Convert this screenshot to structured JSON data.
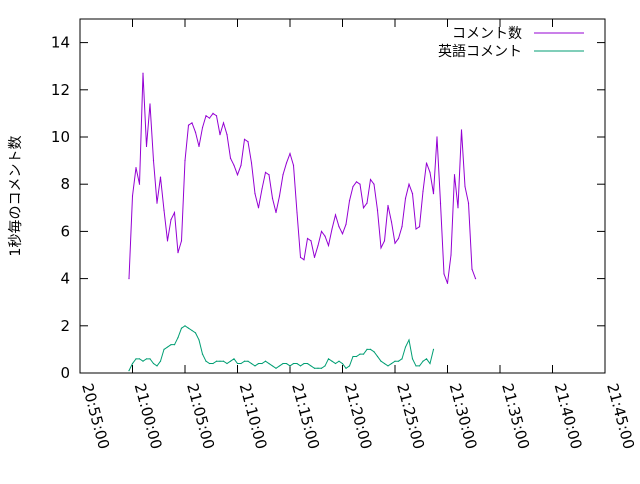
{
  "chart_data": {
    "type": "line",
    "ylabel": "1秒毎のコメント数",
    "xlabel": "",
    "ylim": [
      0,
      15
    ],
    "xlim": [
      "20:55:00",
      "21:45:00"
    ],
    "x_ticks": [
      "20:55:00",
      "21:00:00",
      "21:05:00",
      "21:10:00",
      "21:15:00",
      "21:20:00",
      "21:25:00",
      "21:30:00",
      "21:35:00",
      "21:40:00",
      "21:45:00"
    ],
    "y_ticks": [
      "0",
      "2",
      "4",
      "6",
      "8",
      "10",
      "12",
      "14"
    ],
    "grid": false,
    "legend_position": "top-right",
    "series": [
      {
        "name": "コメント数",
        "color": "#9400d3",
        "points": [
          [
            "20:59:40",
            4.0
          ],
          [
            "21:00:00",
            7.5
          ],
          [
            "21:00:20",
            8.7
          ],
          [
            "21:00:40",
            8.0
          ],
          [
            "21:01:00",
            12.7
          ],
          [
            "21:01:20",
            9.6
          ],
          [
            "21:01:40",
            11.4
          ],
          [
            "21:02:00",
            9.0
          ],
          [
            "21:02:20",
            7.2
          ],
          [
            "21:02:40",
            8.3
          ],
          [
            "21:03:00",
            6.9
          ],
          [
            "21:03:20",
            5.6
          ],
          [
            "21:03:40",
            6.5
          ],
          [
            "21:04:00",
            6.8
          ],
          [
            "21:04:20",
            5.1
          ],
          [
            "21:04:40",
            5.6
          ],
          [
            "21:05:00",
            9.0
          ],
          [
            "21:05:20",
            10.5
          ],
          [
            "21:05:40",
            10.6
          ],
          [
            "21:06:00",
            10.2
          ],
          [
            "21:06:20",
            9.6
          ],
          [
            "21:06:40",
            10.4
          ],
          [
            "21:07:00",
            10.9
          ],
          [
            "21:07:20",
            10.8
          ],
          [
            "21:07:40",
            11.0
          ],
          [
            "21:08:00",
            10.9
          ],
          [
            "21:08:20",
            10.1
          ],
          [
            "21:08:40",
            10.6
          ],
          [
            "21:09:00",
            10.1
          ],
          [
            "21:09:20",
            9.1
          ],
          [
            "21:09:40",
            8.8
          ],
          [
            "21:10:00",
            8.4
          ],
          [
            "21:10:20",
            8.8
          ],
          [
            "21:10:40",
            9.9
          ],
          [
            "21:11:00",
            9.8
          ],
          [
            "21:11:20",
            8.9
          ],
          [
            "21:11:40",
            7.6
          ],
          [
            "21:12:00",
            7.0
          ],
          [
            "21:12:20",
            7.8
          ],
          [
            "21:12:40",
            8.5
          ],
          [
            "21:13:00",
            8.4
          ],
          [
            "21:13:20",
            7.4
          ],
          [
            "21:13:40",
            6.8
          ],
          [
            "21:14:00",
            7.5
          ],
          [
            "21:14:20",
            8.4
          ],
          [
            "21:14:40",
            8.9
          ],
          [
            "21:15:00",
            9.3
          ],
          [
            "21:15:20",
            8.8
          ],
          [
            "21:15:40",
            6.8
          ],
          [
            "21:16:00",
            4.9
          ],
          [
            "21:16:20",
            4.8
          ],
          [
            "21:16:40",
            5.7
          ],
          [
            "21:17:00",
            5.6
          ],
          [
            "21:17:20",
            4.9
          ],
          [
            "21:17:40",
            5.4
          ],
          [
            "21:18:00",
            6.0
          ],
          [
            "21:18:20",
            5.8
          ],
          [
            "21:18:40",
            5.4
          ],
          [
            "21:19:00",
            6.1
          ],
          [
            "21:19:20",
            6.7
          ],
          [
            "21:19:40",
            6.2
          ],
          [
            "21:20:00",
            5.9
          ],
          [
            "21:20:20",
            6.3
          ],
          [
            "21:20:40",
            7.3
          ],
          [
            "21:21:00",
            7.9
          ],
          [
            "21:21:20",
            8.1
          ],
          [
            "21:21:40",
            8.0
          ],
          [
            "21:22:00",
            7.0
          ],
          [
            "21:22:20",
            7.2
          ],
          [
            "21:22:40",
            8.2
          ],
          [
            "21:23:00",
            8.0
          ],
          [
            "21:23:20",
            6.9
          ],
          [
            "21:23:40",
            5.3
          ],
          [
            "21:24:00",
            5.6
          ],
          [
            "21:24:20",
            7.1
          ],
          [
            "21:24:40",
            6.4
          ],
          [
            "21:25:00",
            5.5
          ],
          [
            "21:25:20",
            5.7
          ],
          [
            "21:25:40",
            6.2
          ],
          [
            "21:26:00",
            7.4
          ],
          [
            "21:26:20",
            8.0
          ],
          [
            "21:26:40",
            7.6
          ],
          [
            "21:27:00",
            6.1
          ],
          [
            "21:27:20",
            6.2
          ],
          [
            "21:27:40",
            7.7
          ],
          [
            "21:28:00",
            8.9
          ],
          [
            "21:28:20",
            8.5
          ],
          [
            "21:28:40",
            7.6
          ],
          [
            "21:29:00",
            10.0
          ],
          [
            "21:29:20",
            7.2
          ],
          [
            "21:29:40",
            4.2
          ],
          [
            "21:30:00",
            3.8
          ],
          [
            "21:30:20",
            5.0
          ],
          [
            "21:30:40",
            8.4
          ],
          [
            "21:31:00",
            7.0
          ],
          [
            "21:31:20",
            10.3
          ],
          [
            "21:31:40",
            7.9
          ],
          [
            "21:32:00",
            7.2
          ],
          [
            "21:32:20",
            4.4
          ],
          [
            "21:32:40",
            4.0
          ]
        ]
      },
      {
        "name": "英語コメント",
        "color": "#009e73",
        "points": [
          [
            "20:59:40",
            0.1
          ],
          [
            "21:00:00",
            0.4
          ],
          [
            "21:00:20",
            0.6
          ],
          [
            "21:00:40",
            0.6
          ],
          [
            "21:01:00",
            0.5
          ],
          [
            "21:01:20",
            0.6
          ],
          [
            "21:01:40",
            0.6
          ],
          [
            "21:02:00",
            0.4
          ],
          [
            "21:02:20",
            0.3
          ],
          [
            "21:02:40",
            0.5
          ],
          [
            "21:03:00",
            1.0
          ],
          [
            "21:03:20",
            1.1
          ],
          [
            "21:03:40",
            1.2
          ],
          [
            "21:04:00",
            1.2
          ],
          [
            "21:04:20",
            1.5
          ],
          [
            "21:04:40",
            1.9
          ],
          [
            "21:05:00",
            2.0
          ],
          [
            "21:05:20",
            1.9
          ],
          [
            "21:05:40",
            1.8
          ],
          [
            "21:06:00",
            1.7
          ],
          [
            "21:06:20",
            1.4
          ],
          [
            "21:06:40",
            0.8
          ],
          [
            "21:07:00",
            0.5
          ],
          [
            "21:07:20",
            0.4
          ],
          [
            "21:07:40",
            0.4
          ],
          [
            "21:08:00",
            0.5
          ],
          [
            "21:08:20",
            0.5
          ],
          [
            "21:08:40",
            0.5
          ],
          [
            "21:09:00",
            0.4
          ],
          [
            "21:09:20",
            0.5
          ],
          [
            "21:09:40",
            0.6
          ],
          [
            "21:10:00",
            0.4
          ],
          [
            "21:10:20",
            0.4
          ],
          [
            "21:10:40",
            0.5
          ],
          [
            "21:11:00",
            0.5
          ],
          [
            "21:11:20",
            0.4
          ],
          [
            "21:11:40",
            0.3
          ],
          [
            "21:12:00",
            0.4
          ],
          [
            "21:12:20",
            0.4
          ],
          [
            "21:12:40",
            0.5
          ],
          [
            "21:13:00",
            0.4
          ],
          [
            "21:13:20",
            0.3
          ],
          [
            "21:13:40",
            0.2
          ],
          [
            "21:14:00",
            0.3
          ],
          [
            "21:14:20",
            0.4
          ],
          [
            "21:14:40",
            0.4
          ],
          [
            "21:15:00",
            0.3
          ],
          [
            "21:15:20",
            0.4
          ],
          [
            "21:15:40",
            0.4
          ],
          [
            "21:16:00",
            0.3
          ],
          [
            "21:16:20",
            0.4
          ],
          [
            "21:16:40",
            0.4
          ],
          [
            "21:17:00",
            0.3
          ],
          [
            "21:17:20",
            0.2
          ],
          [
            "21:17:40",
            0.2
          ],
          [
            "21:18:00",
            0.2
          ],
          [
            "21:18:20",
            0.3
          ],
          [
            "21:18:40",
            0.6
          ],
          [
            "21:19:00",
            0.5
          ],
          [
            "21:19:20",
            0.4
          ],
          [
            "21:19:40",
            0.5
          ],
          [
            "21:20:00",
            0.4
          ],
          [
            "21:20:20",
            0.2
          ],
          [
            "21:20:40",
            0.3
          ],
          [
            "21:21:00",
            0.7
          ],
          [
            "21:21:20",
            0.7
          ],
          [
            "21:21:40",
            0.8
          ],
          [
            "21:22:00",
            0.8
          ],
          [
            "21:22:20",
            1.0
          ],
          [
            "21:22:40",
            1.0
          ],
          [
            "21:23:00",
            0.9
          ],
          [
            "21:23:20",
            0.7
          ],
          [
            "21:23:40",
            0.5
          ],
          [
            "21:24:00",
            0.4
          ],
          [
            "21:24:20",
            0.3
          ],
          [
            "21:24:40",
            0.4
          ],
          [
            "21:25:00",
            0.5
          ],
          [
            "21:25:20",
            0.5
          ],
          [
            "21:25:40",
            0.6
          ],
          [
            "21:26:00",
            1.1
          ],
          [
            "21:26:20",
            1.4
          ],
          [
            "21:26:40",
            0.6
          ],
          [
            "21:27:00",
            0.3
          ],
          [
            "21:27:20",
            0.3
          ],
          [
            "21:27:40",
            0.5
          ],
          [
            "21:28:00",
            0.6
          ],
          [
            "21:28:20",
            0.4
          ],
          [
            "21:28:40",
            1.0
          ]
        ]
      }
    ]
  }
}
